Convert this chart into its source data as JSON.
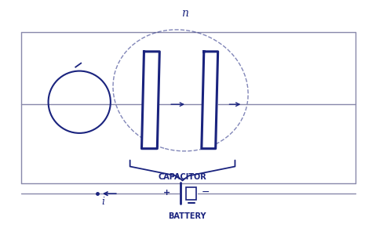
{
  "bg_color": "#ffffff",
  "ink_color": "#1a237e",
  "wire_color": "#8888aa",
  "cap_label": "CAPACITOR",
  "bat_label": "BATTERY",
  "current_label": "i",
  "n_label": "n"
}
